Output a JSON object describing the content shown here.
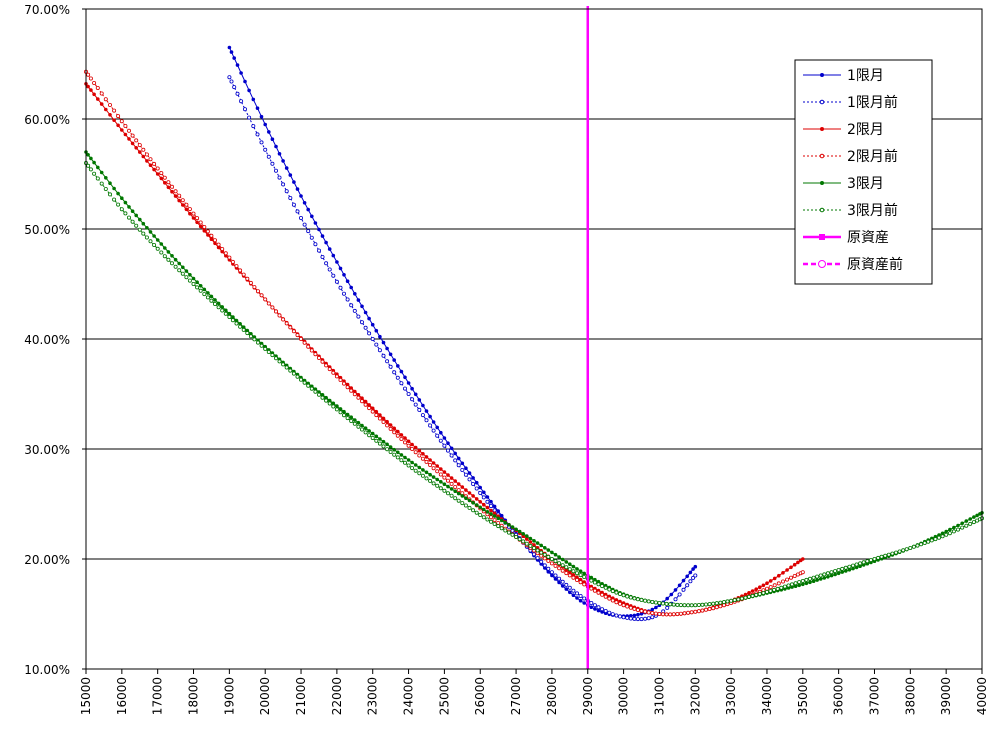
{
  "chart_data": {
    "type": "line",
    "title": "",
    "xlabel": "",
    "ylabel": "",
    "xlim": [
      15000,
      40000
    ],
    "ylim": [
      0.1,
      0.7
    ],
    "grid": "horizontal",
    "legend_position": "right",
    "y_ticks": [
      {
        "value": 0.7,
        "label": "70.00%"
      },
      {
        "value": 0.6,
        "label": "60.00%"
      },
      {
        "value": 0.5,
        "label": "50.00%"
      },
      {
        "value": 0.4,
        "label": "40.00%"
      },
      {
        "value": 0.3,
        "label": "30.00%"
      },
      {
        "value": 0.2,
        "label": "20.00%"
      },
      {
        "value": 0.1,
        "label": "10.00%"
      }
    ],
    "x_ticks": [
      15000,
      16000,
      17000,
      18000,
      19000,
      20000,
      21000,
      22000,
      23000,
      24000,
      25000,
      26000,
      27000,
      28000,
      29000,
      30000,
      31000,
      32000,
      33000,
      34000,
      35000,
      36000,
      37000,
      38000,
      39000,
      40000
    ],
    "series": [
      {
        "name": "1限月",
        "color": "#0000CC",
        "style": "solid",
        "marker": "filled",
        "points": [
          [
            19000,
            0.665
          ],
          [
            20000,
            0.595
          ],
          [
            21000,
            0.53
          ],
          [
            22000,
            0.47
          ],
          [
            23000,
            0.413
          ],
          [
            24000,
            0.36
          ],
          [
            25000,
            0.31
          ],
          [
            26000,
            0.265
          ],
          [
            27000,
            0.223
          ],
          [
            28000,
            0.185
          ],
          [
            29000,
            0.158
          ],
          [
            30000,
            0.148
          ],
          [
            31000,
            0.158
          ],
          [
            32000,
            0.193
          ]
        ]
      },
      {
        "name": "1限月前",
        "color": "#0000CC",
        "style": "dotted",
        "marker": "open",
        "points": [
          [
            19000,
            0.638
          ],
          [
            20000,
            0.572
          ],
          [
            21000,
            0.51
          ],
          [
            22000,
            0.452
          ],
          [
            23000,
            0.4
          ],
          [
            24000,
            0.35
          ],
          [
            25000,
            0.303
          ],
          [
            26000,
            0.26
          ],
          [
            27000,
            0.222
          ],
          [
            28000,
            0.188
          ],
          [
            29000,
            0.162
          ],
          [
            30000,
            0.147
          ],
          [
            31000,
            0.15
          ],
          [
            32000,
            0.185
          ]
        ]
      },
      {
        "name": "2限月",
        "color": "#DD0000",
        "style": "solid",
        "marker": "filled",
        "points": [
          [
            15000,
            0.632
          ],
          [
            16000,
            0.59
          ],
          [
            17000,
            0.55
          ],
          [
            18000,
            0.51
          ],
          [
            19000,
            0.472
          ],
          [
            20000,
            0.436
          ],
          [
            21000,
            0.401
          ],
          [
            22000,
            0.368
          ],
          [
            23000,
            0.337
          ],
          [
            24000,
            0.307
          ],
          [
            25000,
            0.279
          ],
          [
            26000,
            0.252
          ],
          [
            27000,
            0.226
          ],
          [
            28000,
            0.2
          ],
          [
            29000,
            0.177
          ],
          [
            30000,
            0.16
          ],
          [
            31000,
            0.15
          ],
          [
            32000,
            0.152
          ],
          [
            33000,
            0.162
          ],
          [
            34000,
            0.178
          ],
          [
            35000,
            0.2
          ]
        ]
      },
      {
        "name": "2限月前",
        "color": "#DD0000",
        "style": "dotted",
        "marker": "open",
        "points": [
          [
            15000,
            0.643
          ],
          [
            16000,
            0.598
          ],
          [
            17000,
            0.555
          ],
          [
            18000,
            0.514
          ],
          [
            19000,
            0.474
          ],
          [
            20000,
            0.436
          ],
          [
            21000,
            0.4
          ],
          [
            22000,
            0.366
          ],
          [
            23000,
            0.334
          ],
          [
            24000,
            0.303
          ],
          [
            25000,
            0.274
          ],
          [
            26000,
            0.246
          ],
          [
            27000,
            0.22
          ],
          [
            28000,
            0.196
          ],
          [
            29000,
            0.175
          ],
          [
            30000,
            0.158
          ],
          [
            31000,
            0.15
          ],
          [
            32000,
            0.152
          ],
          [
            33000,
            0.16
          ],
          [
            34000,
            0.173
          ],
          [
            35000,
            0.188
          ]
        ]
      },
      {
        "name": "3限月",
        "color": "#007700",
        "style": "solid",
        "marker": "filled",
        "points": [
          [
            15000,
            0.57
          ],
          [
            16000,
            0.528
          ],
          [
            17000,
            0.49
          ],
          [
            18000,
            0.455
          ],
          [
            19000,
            0.423
          ],
          [
            20000,
            0.393
          ],
          [
            21000,
            0.365
          ],
          [
            22000,
            0.339
          ],
          [
            23000,
            0.314
          ],
          [
            24000,
            0.29
          ],
          [
            25000,
            0.268
          ],
          [
            26000,
            0.247
          ],
          [
            27000,
            0.227
          ],
          [
            28000,
            0.206
          ],
          [
            29000,
            0.185
          ],
          [
            30000,
            0.168
          ],
          [
            31000,
            0.16
          ],
          [
            32000,
            0.158
          ],
          [
            33000,
            0.162
          ],
          [
            34000,
            0.169
          ],
          [
            35000,
            0.177
          ],
          [
            36000,
            0.187
          ],
          [
            37000,
            0.198
          ],
          [
            38000,
            0.21
          ],
          [
            39000,
            0.225
          ],
          [
            40000,
            0.242
          ]
        ]
      },
      {
        "name": "3限月前",
        "color": "#007700",
        "style": "dotted",
        "marker": "open",
        "points": [
          [
            15000,
            0.56
          ],
          [
            16000,
            0.518
          ],
          [
            17000,
            0.482
          ],
          [
            18000,
            0.45
          ],
          [
            19000,
            0.42
          ],
          [
            20000,
            0.391
          ],
          [
            21000,
            0.363
          ],
          [
            22000,
            0.336
          ],
          [
            23000,
            0.31
          ],
          [
            24000,
            0.285
          ],
          [
            25000,
            0.262
          ],
          [
            26000,
            0.24
          ],
          [
            27000,
            0.22
          ],
          [
            28000,
            0.2
          ],
          [
            29000,
            0.182
          ],
          [
            30000,
            0.167
          ],
          [
            31000,
            0.16
          ],
          [
            32000,
            0.158
          ],
          [
            33000,
            0.162
          ],
          [
            34000,
            0.17
          ],
          [
            35000,
            0.18
          ],
          [
            36000,
            0.19
          ],
          [
            37000,
            0.2
          ],
          [
            38000,
            0.21
          ],
          [
            39000,
            0.222
          ],
          [
            40000,
            0.237
          ]
        ]
      },
      {
        "name": "原資産",
        "color": "#FF00FF",
        "style": "solid",
        "marker": "filled",
        "vertical_x": 29000
      },
      {
        "name": "原資産前",
        "color": "#FF00FF",
        "style": "dashed",
        "marker": "open",
        "vertical_x": 29000
      }
    ]
  }
}
